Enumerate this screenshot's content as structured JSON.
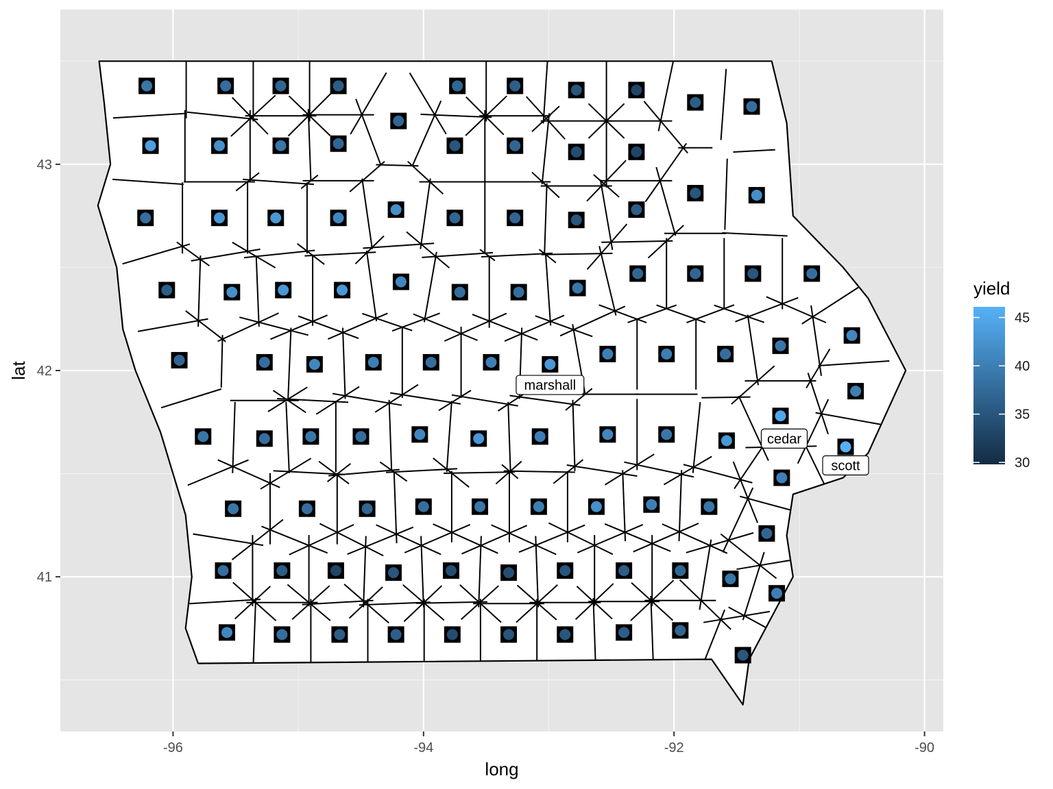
{
  "chart_data": {
    "type": "map",
    "xlabel": "long",
    "ylabel": "lat",
    "xlim": [
      -96.9,
      -89.85
    ],
    "ylim": [
      40.25,
      43.75
    ],
    "x_ticks": [
      -96,
      -94,
      -92,
      -90
    ],
    "x_tick_labels": [
      "-96",
      "-94",
      "-92",
      "-90"
    ],
    "y_ticks": [
      41,
      42,
      43
    ],
    "y_tick_labels": [
      "41",
      "42",
      "43"
    ],
    "grid": true,
    "background": "#e5e5e5",
    "legend": {
      "title": "yield",
      "placement": "right",
      "range": [
        29.8,
        46.1
      ],
      "breaks": [
        30,
        35,
        40,
        45
      ],
      "break_labels": [
        "30",
        "35",
        "40",
        "45"
      ],
      "color_low": "#132b43",
      "color_high": "#56b1f7"
    },
    "colors": {
      "outline": "#000000",
      "county_fill": "#ffffff",
      "point_square": "#000000",
      "label_box": "#ffffff"
    },
    "iowa_outline": [
      [
        -96.59,
        43.5
      ],
      [
        -91.22,
        43.5
      ],
      [
        -91.18,
        43.4
      ],
      [
        -91.1,
        43.2
      ],
      [
        -91.05,
        42.75
      ],
      [
        -90.65,
        42.5
      ],
      [
        -90.45,
        42.35
      ],
      [
        -90.15,
        42.0
      ],
      [
        -90.3,
        41.8
      ],
      [
        -90.45,
        41.6
      ],
      [
        -90.65,
        41.48
      ],
      [
        -91.05,
        41.4
      ],
      [
        -91.1,
        41.2
      ],
      [
        -91.05,
        41.0
      ],
      [
        -91.4,
        40.6
      ],
      [
        -91.45,
        40.38
      ],
      [
        -91.7,
        40.6
      ],
      [
        -95.8,
        40.58
      ],
      [
        -95.9,
        40.75
      ],
      [
        -95.85,
        41.0
      ],
      [
        -95.9,
        41.3
      ],
      [
        -96.0,
        41.5
      ],
      [
        -96.1,
        41.7
      ],
      [
        -96.3,
        42.0
      ],
      [
        -96.4,
        42.2
      ],
      [
        -96.45,
        42.5
      ],
      [
        -96.6,
        42.8
      ],
      [
        -96.5,
        43.0
      ],
      [
        -96.55,
        43.3
      ]
    ],
    "counties": [
      {
        "x": -96.21,
        "y": 43.38,
        "yield": 39
      },
      {
        "x": -95.58,
        "y": 43.38,
        "yield": 38
      },
      {
        "x": -95.14,
        "y": 43.38,
        "yield": 37
      },
      {
        "x": -94.68,
        "y": 43.38,
        "yield": 36
      },
      {
        "x": -93.73,
        "y": 43.38,
        "yield": 37
      },
      {
        "x": -93.27,
        "y": 43.38,
        "yield": 36
      },
      {
        "x": -92.78,
        "y": 43.36,
        "yield": 35
      },
      {
        "x": -92.3,
        "y": 43.36,
        "yield": 33
      },
      {
        "x": -91.83,
        "y": 43.3,
        "yield": 36
      },
      {
        "x": -91.38,
        "y": 43.28,
        "yield": 38
      },
      {
        "x": -96.18,
        "y": 43.09,
        "yield": 44
      },
      {
        "x": -95.63,
        "y": 43.09,
        "yield": 42
      },
      {
        "x": -95.14,
        "y": 43.09,
        "yield": 39
      },
      {
        "x": -94.68,
        "y": 43.1,
        "yield": 37
      },
      {
        "x": -94.2,
        "y": 43.21,
        "yield": 37
      },
      {
        "x": -93.75,
        "y": 43.09,
        "yield": 35
      },
      {
        "x": -93.27,
        "y": 43.09,
        "yield": 37
      },
      {
        "x": -92.78,
        "y": 43.06,
        "yield": 34
      },
      {
        "x": -92.3,
        "y": 43.06,
        "yield": 33
      },
      {
        "x": -96.22,
        "y": 42.74,
        "yield": 38
      },
      {
        "x": -95.63,
        "y": 42.74,
        "yield": 43
      },
      {
        "x": -95.18,
        "y": 42.74,
        "yield": 43
      },
      {
        "x": -94.68,
        "y": 42.74,
        "yield": 41
      },
      {
        "x": -94.22,
        "y": 42.78,
        "yield": 42
      },
      {
        "x": -93.75,
        "y": 42.74,
        "yield": 37
      },
      {
        "x": -93.27,
        "y": 42.74,
        "yield": 37
      },
      {
        "x": -92.78,
        "y": 42.73,
        "yield": 35
      },
      {
        "x": -92.3,
        "y": 42.78,
        "yield": 36
      },
      {
        "x": -91.83,
        "y": 42.86,
        "yield": 35
      },
      {
        "x": -91.34,
        "y": 42.85,
        "yield": 42
      },
      {
        "x": -96.05,
        "y": 42.39,
        "yield": 36
      },
      {
        "x": -95.53,
        "y": 42.38,
        "yield": 42
      },
      {
        "x": -95.12,
        "y": 42.39,
        "yield": 43
      },
      {
        "x": -94.65,
        "y": 42.39,
        "yield": 43
      },
      {
        "x": -94.18,
        "y": 42.43,
        "yield": 41
      },
      {
        "x": -93.71,
        "y": 42.38,
        "yield": 38
      },
      {
        "x": -93.24,
        "y": 42.38,
        "yield": 38
      },
      {
        "x": -92.77,
        "y": 42.4,
        "yield": 39
      },
      {
        "x": -92.29,
        "y": 42.47,
        "yield": 37
      },
      {
        "x": -91.83,
        "y": 42.47,
        "yield": 37
      },
      {
        "x": -91.37,
        "y": 42.47,
        "yield": 35
      },
      {
        "x": -90.9,
        "y": 42.47,
        "yield": 38
      },
      {
        "x": -95.95,
        "y": 42.05,
        "yield": 37
      },
      {
        "x": -95.27,
        "y": 42.04,
        "yield": 38
      },
      {
        "x": -94.87,
        "y": 42.03,
        "yield": 41
      },
      {
        "x": -94.4,
        "y": 42.04,
        "yield": 40
      },
      {
        "x": -93.94,
        "y": 42.04,
        "yield": 38
      },
      {
        "x": -93.46,
        "y": 42.04,
        "yield": 40
      },
      {
        "x": -92.99,
        "y": 42.03,
        "yield": 43
      },
      {
        "x": -92.53,
        "y": 42.08,
        "yield": 40
      },
      {
        "x": -92.06,
        "y": 42.08,
        "yield": 40
      },
      {
        "x": -91.59,
        "y": 42.08,
        "yield": 38
      },
      {
        "x": -91.15,
        "y": 42.12,
        "yield": 39
      },
      {
        "x": -90.58,
        "y": 42.17,
        "yield": 41
      },
      {
        "x": -90.55,
        "y": 41.9,
        "yield": 40
      },
      {
        "x": -95.76,
        "y": 41.68,
        "yield": 39
      },
      {
        "x": -95.27,
        "y": 41.67,
        "yield": 38
      },
      {
        "x": -94.9,
        "y": 41.68,
        "yield": 39
      },
      {
        "x": -94.5,
        "y": 41.68,
        "yield": 38
      },
      {
        "x": -94.03,
        "y": 41.69,
        "yield": 41
      },
      {
        "x": -93.56,
        "y": 41.67,
        "yield": 43
      },
      {
        "x": -93.07,
        "y": 41.68,
        "yield": 40
      },
      {
        "x": -92.53,
        "y": 41.69,
        "yield": 41
      },
      {
        "x": -92.06,
        "y": 41.69,
        "yield": 39
      },
      {
        "x": -91.58,
        "y": 41.66,
        "yield": 43
      },
      {
        "x": -91.15,
        "y": 41.78,
        "yield": 45
      },
      {
        "x": -90.63,
        "y": 41.63,
        "yield": 46
      },
      {
        "x": -95.52,
        "y": 41.33,
        "yield": 39
      },
      {
        "x": -94.93,
        "y": 41.33,
        "yield": 38
      },
      {
        "x": -94.45,
        "y": 41.33,
        "yield": 37
      },
      {
        "x": -94.0,
        "y": 41.34,
        "yield": 38
      },
      {
        "x": -93.55,
        "y": 41.34,
        "yield": 39
      },
      {
        "x": -93.08,
        "y": 41.34,
        "yield": 40
      },
      {
        "x": -92.62,
        "y": 41.34,
        "yield": 42
      },
      {
        "x": -92.18,
        "y": 41.35,
        "yield": 40
      },
      {
        "x": -91.72,
        "y": 41.34,
        "yield": 39
      },
      {
        "x": -91.14,
        "y": 41.48,
        "yield": 40
      },
      {
        "x": -95.6,
        "y": 41.03,
        "yield": 38
      },
      {
        "x": -95.13,
        "y": 41.03,
        "yield": 36
      },
      {
        "x": -94.7,
        "y": 41.03,
        "yield": 33
      },
      {
        "x": -94.24,
        "y": 41.02,
        "yield": 35
      },
      {
        "x": -93.78,
        "y": 41.03,
        "yield": 34
      },
      {
        "x": -93.32,
        "y": 41.02,
        "yield": 34
      },
      {
        "x": -92.87,
        "y": 41.03,
        "yield": 35
      },
      {
        "x": -92.4,
        "y": 41.03,
        "yield": 36
      },
      {
        "x": -91.95,
        "y": 41.03,
        "yield": 37
      },
      {
        "x": -91.55,
        "y": 40.99,
        "yield": 39
      },
      {
        "x": -91.26,
        "y": 41.21,
        "yield": 37
      },
      {
        "x": -91.18,
        "y": 40.92,
        "yield": 40
      },
      {
        "x": -95.57,
        "y": 40.73,
        "yield": 41
      },
      {
        "x": -95.13,
        "y": 40.72,
        "yield": 38
      },
      {
        "x": -94.67,
        "y": 40.72,
        "yield": 36
      },
      {
        "x": -94.22,
        "y": 40.72,
        "yield": 36
      },
      {
        "x": -93.77,
        "y": 40.72,
        "yield": 34
      },
      {
        "x": -93.32,
        "y": 40.72,
        "yield": 35
      },
      {
        "x": -92.87,
        "y": 40.72,
        "yield": 35
      },
      {
        "x": -92.4,
        "y": 40.73,
        "yield": 36
      },
      {
        "x": -91.95,
        "y": 40.74,
        "yield": 37
      },
      {
        "x": -91.45,
        "y": 40.62,
        "yield": 35
      }
    ],
    "labels": [
      {
        "text": "marshall",
        "x": -92.99,
        "y": 41.93
      },
      {
        "text": "cedar",
        "x": -91.12,
        "y": 41.67
      },
      {
        "text": "scott",
        "x": -90.63,
        "y": 41.54
      }
    ]
  }
}
